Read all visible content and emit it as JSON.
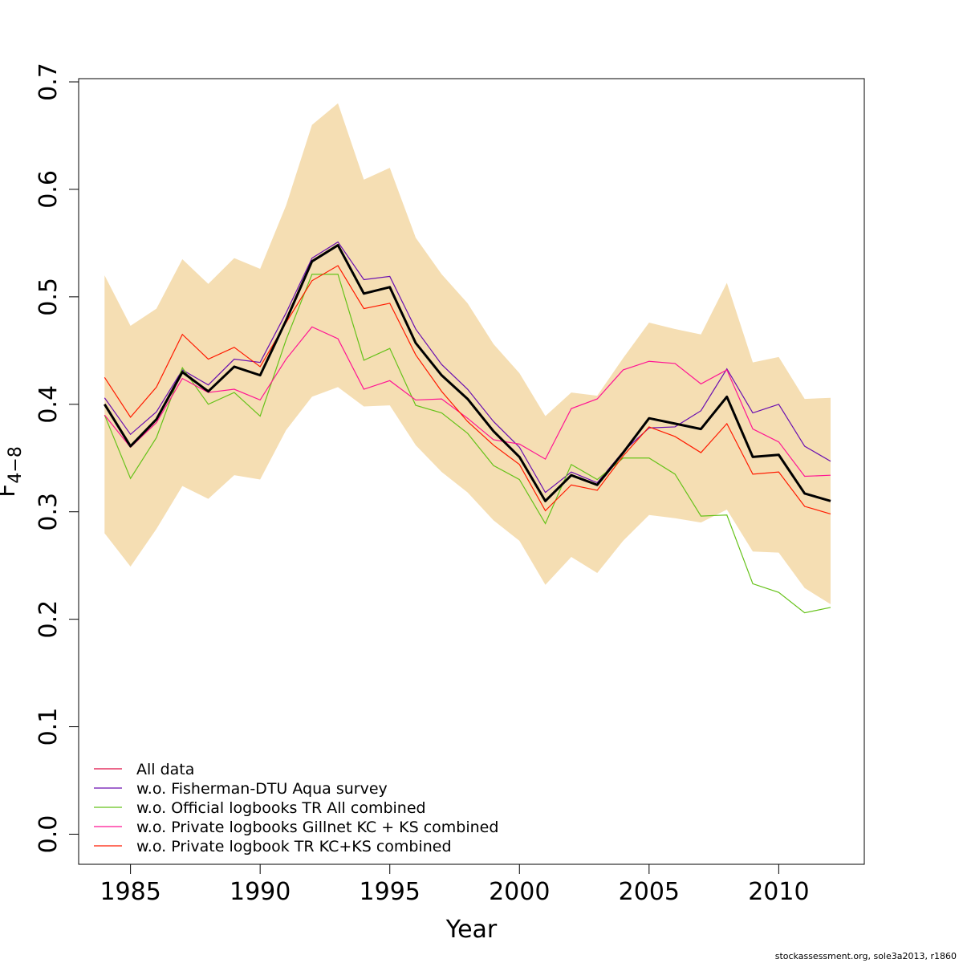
{
  "footer": "stockassessment.org, sole3a2013, r1860",
  "chart_data": {
    "type": "line",
    "xlabel": "Year",
    "ylabel": "F",
    "ylabel_sub": "4−8",
    "xlim": [
      1983,
      2013.3
    ],
    "ylim": [
      -0.028,
      0.703
    ],
    "x_ticks": [
      1985,
      1990,
      1995,
      2000,
      2005,
      2010
    ],
    "y_ticks": [
      0.0,
      0.1,
      0.2,
      0.3,
      0.4,
      0.5,
      0.6,
      0.7
    ],
    "y_tick_labels": [
      "0.0",
      "0.1",
      "0.2",
      "0.3",
      "0.4",
      "0.5",
      "0.6",
      "0.7"
    ],
    "x": [
      1984,
      1985,
      1986,
      1987,
      1988,
      1989,
      1990,
      1991,
      1992,
      1993,
      1994,
      1995,
      1996,
      1997,
      1998,
      1999,
      2000,
      2001,
      2002,
      2003,
      2004,
      2005,
      2006,
      2007,
      2008,
      2009,
      2010,
      2011,
      2012
    ],
    "band": {
      "color": "#F5DEB3",
      "upper": [
        0.52,
        0.473,
        0.489,
        0.535,
        0.512,
        0.536,
        0.526,
        0.585,
        0.66,
        0.68,
        0.609,
        0.62,
        0.555,
        0.521,
        0.494,
        0.456,
        0.429,
        0.389,
        0.411,
        0.408,
        0.443,
        0.476,
        0.47,
        0.465,
        0.513,
        0.439,
        0.444,
        0.405,
        0.406
      ],
      "lower": [
        0.28,
        0.249,
        0.284,
        0.324,
        0.312,
        0.334,
        0.33,
        0.376,
        0.407,
        0.416,
        0.398,
        0.399,
        0.362,
        0.337,
        0.318,
        0.292,
        0.273,
        0.232,
        0.258,
        0.243,
        0.273,
        0.297,
        0.294,
        0.29,
        0.302,
        0.263,
        0.262,
        0.229,
        0.214
      ]
    },
    "estimate": {
      "color": "#000000",
      "values": [
        0.4,
        0.361,
        0.386,
        0.43,
        0.412,
        0.435,
        0.427,
        0.478,
        0.533,
        0.548,
        0.503,
        0.509,
        0.457,
        0.427,
        0.405,
        0.375,
        0.351,
        0.31,
        0.334,
        0.325,
        0.355,
        0.387,
        0.382,
        0.377,
        0.407,
        0.351,
        0.353,
        0.317,
        0.31
      ]
    },
    "series": [
      {
        "name": "All data",
        "color": "#DF0C45",
        "values": [
          0.4,
          0.361,
          0.386,
          0.43,
          0.412,
          0.435,
          0.427,
          0.478,
          0.533,
          0.548,
          0.503,
          0.509,
          0.457,
          0.427,
          0.405,
          0.375,
          0.351,
          0.31,
          0.334,
          0.325,
          0.355,
          0.387,
          0.382,
          0.377,
          0.407,
          0.351,
          0.353,
          0.317,
          0.31
        ]
      },
      {
        "name": "w.o. Fisherman-DTU Aqua survey",
        "color": "#6A0FB0",
        "values": [
          0.406,
          0.372,
          0.393,
          0.432,
          0.418,
          0.442,
          0.439,
          0.485,
          0.536,
          0.551,
          0.516,
          0.519,
          0.47,
          0.437,
          0.414,
          0.384,
          0.36,
          0.318,
          0.337,
          0.327,
          0.356,
          0.378,
          0.379,
          0.394,
          0.433,
          0.392,
          0.4,
          0.361,
          0.347
        ]
      },
      {
        "name": "w.o. Official logbooks TR All combined",
        "color": "#66C21A",
        "values": [
          0.39,
          0.331,
          0.369,
          0.434,
          0.4,
          0.411,
          0.389,
          0.46,
          0.521,
          0.521,
          0.441,
          0.452,
          0.399,
          0.392,
          0.373,
          0.343,
          0.33,
          0.289,
          0.344,
          0.33,
          0.35,
          0.35,
          0.335,
          0.296,
          0.297,
          0.233,
          0.225,
          0.206,
          0.211
        ]
      },
      {
        "name": "w.o. Private logbooks Gillnet KC + KS combined",
        "color": "#FF1493",
        "values": [
          0.39,
          0.36,
          0.383,
          0.424,
          0.411,
          0.414,
          0.404,
          0.442,
          0.472,
          0.461,
          0.414,
          0.422,
          0.404,
          0.405,
          0.387,
          0.367,
          0.363,
          0.349,
          0.396,
          0.405,
          0.432,
          0.44,
          0.438,
          0.419,
          0.432,
          0.377,
          0.365,
          0.333,
          0.334
        ]
      },
      {
        "name": "w.o. Private logbook TR KC+KS combined",
        "color": "#FF1A00",
        "values": [
          0.425,
          0.388,
          0.416,
          0.465,
          0.442,
          0.453,
          0.435,
          0.476,
          0.515,
          0.529,
          0.489,
          0.494,
          0.446,
          0.412,
          0.384,
          0.362,
          0.344,
          0.301,
          0.325,
          0.32,
          0.352,
          0.379,
          0.37,
          0.355,
          0.382,
          0.335,
          0.337,
          0.305,
          0.298
        ]
      }
    ],
    "legend": {
      "position": "bottom-left",
      "boxed": false
    }
  }
}
